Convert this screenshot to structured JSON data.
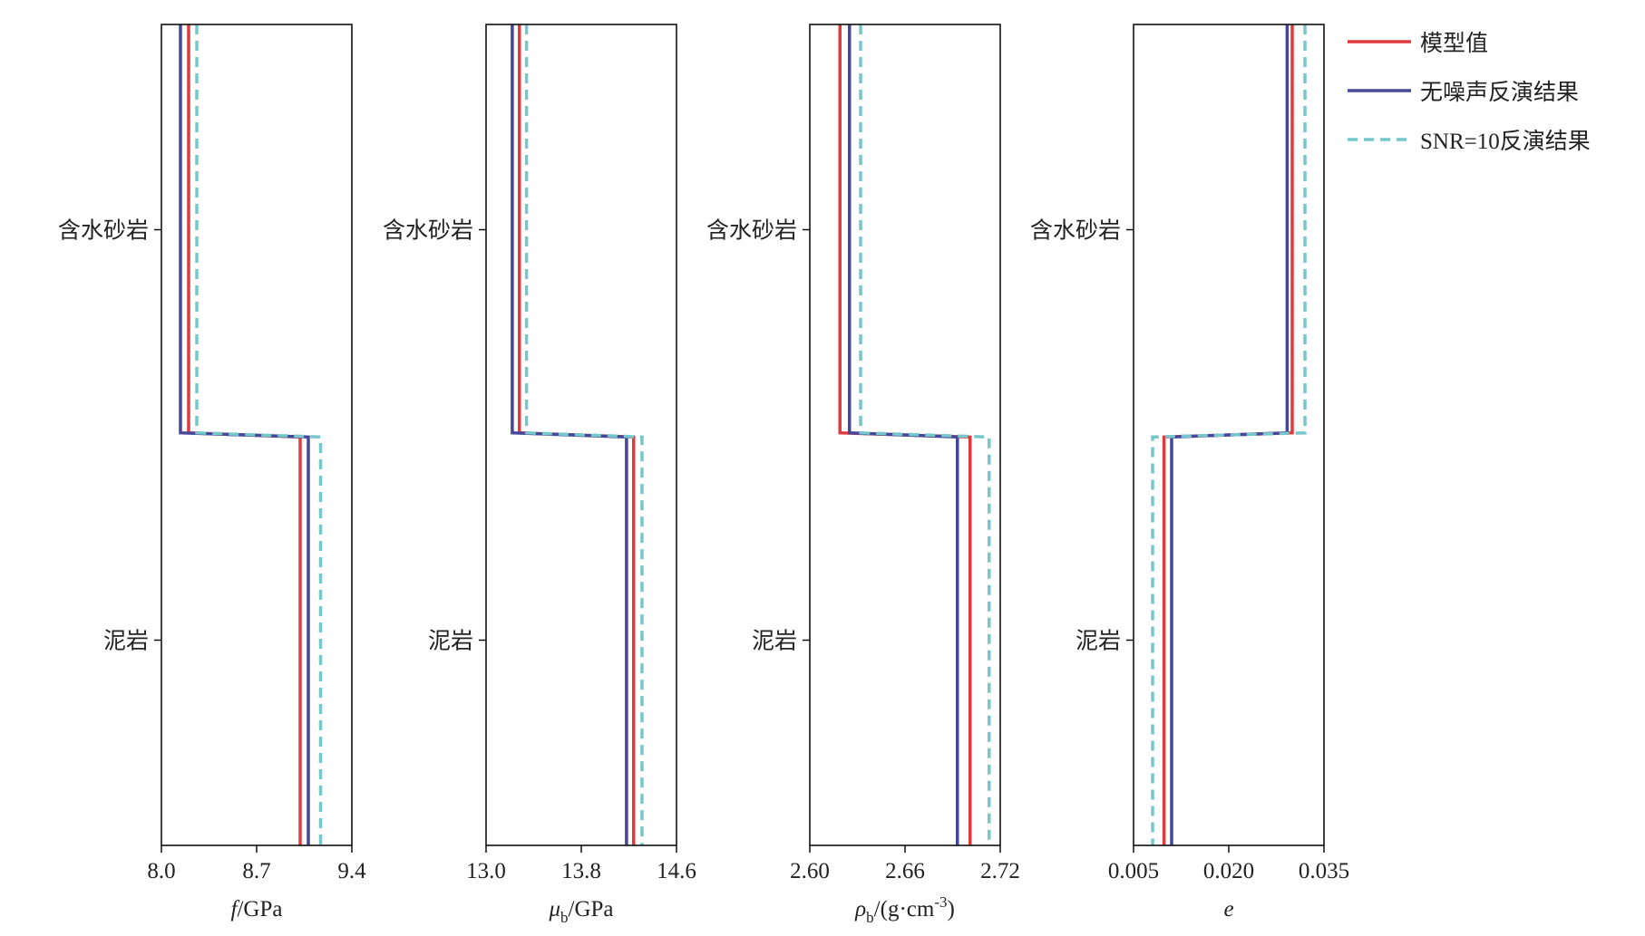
{
  "chart_data": [
    {
      "type": "line",
      "xlim": [
        8.0,
        9.4
      ],
      "xticks": [
        {
          "value": 8.0,
          "label": "8.0"
        },
        8.7,
        9.4
      ],
      "ylim": [
        0,
        2
      ],
      "yticks": [
        {
          "value": 0.5,
          "label": "含水砂岩"
        },
        {
          "value": 1.5,
          "label": "泥岩"
        }
      ],
      "xlabel": [
        {
          "text": "f",
          "style": "italic"
        },
        {
          "text": "/GPa",
          "style": "normal"
        }
      ],
      "series": [
        {
          "name": "模型值",
          "color": "#e03a3e",
          "dashed": false,
          "values": [
            8.2,
            8.2,
            9.02,
            9.02
          ],
          "depth": [
            0,
            0.995,
            1.005,
            2
          ]
        },
        {
          "name": "无噪声反演结果",
          "color": "#46479a",
          "dashed": false,
          "values": [
            8.14,
            8.14,
            9.08,
            9.08
          ],
          "depth": [
            0,
            0.995,
            1.005,
            2
          ]
        },
        {
          "name": "SNR=10反演结果",
          "color": "#76c7cb",
          "dashed": true,
          "values": [
            8.26,
            8.26,
            9.17,
            9.17
          ],
          "depth": [
            0,
            0.995,
            1.005,
            2
          ]
        }
      ]
    },
    {
      "type": "line",
      "xlim": [
        13.0,
        14.6
      ],
      "xticks": [
        {
          "value": 13.0,
          "label": "13.0"
        },
        13.8,
        14.6
      ],
      "ylim": [
        0,
        2
      ],
      "yticks": [
        {
          "value": 0.5,
          "label": "含水砂岩"
        },
        {
          "value": 1.5,
          "label": "泥岩"
        }
      ],
      "xlabel": [
        {
          "text": "μ",
          "style": "italic"
        },
        {
          "text": "b",
          "style": "sub"
        },
        {
          "text": "/GPa",
          "style": "normal"
        }
      ],
      "series": [
        {
          "color": "#e03a3e",
          "dashed": false,
          "values": [
            13.28,
            13.28,
            14.24,
            14.24
          ],
          "depth": [
            0,
            0.995,
            1.005,
            2
          ]
        },
        {
          "color": "#46479a",
          "dashed": false,
          "values": [
            13.22,
            13.22,
            14.18,
            14.18
          ],
          "depth": [
            0,
            0.995,
            1.005,
            2
          ]
        },
        {
          "color": "#76c7cb",
          "dashed": true,
          "values": [
            13.34,
            13.34,
            14.31,
            14.31
          ],
          "depth": [
            0,
            0.995,
            1.005,
            2
          ]
        }
      ]
    },
    {
      "type": "line",
      "xlim": [
        2.6,
        2.72
      ],
      "xticks": [
        {
          "value": 2.6,
          "label": "2.60"
        },
        2.66,
        2.72
      ],
      "ylim": [
        0,
        2
      ],
      "yticks": [
        {
          "value": 0.5,
          "label": "含水砂岩"
        },
        {
          "value": 1.5,
          "label": "泥岩"
        }
      ],
      "xlabel": [
        {
          "text": "ρ",
          "style": "italic"
        },
        {
          "text": "b",
          "style": "sub"
        },
        {
          "text": "/(g·cm",
          "style": "normal"
        },
        {
          "text": "-3",
          "style": "sup"
        },
        {
          "text": ")",
          "style": "normal"
        }
      ],
      "series": [
        {
          "color": "#e03a3e",
          "dashed": false,
          "values": [
            2.619,
            2.619,
            2.701,
            2.701
          ],
          "depth": [
            0,
            0.995,
            1.005,
            2
          ]
        },
        {
          "color": "#46479a",
          "dashed": false,
          "values": [
            2.625,
            2.625,
            2.693,
            2.693
          ],
          "depth": [
            0,
            0.995,
            1.005,
            2
          ]
        },
        {
          "color": "#76c7cb",
          "dashed": true,
          "values": [
            2.632,
            2.632,
            2.713,
            2.713
          ],
          "depth": [
            0,
            0.995,
            1.005,
            2
          ]
        }
      ]
    },
    {
      "type": "line",
      "xlim": [
        0.005,
        0.035
      ],
      "xticks": [
        0.005,
        {
          "value": 0.02,
          "label": "0.020"
        },
        0.035
      ],
      "ylim": [
        0,
        2
      ],
      "yticks": [
        {
          "value": 0.5,
          "label": "含水砂岩"
        },
        {
          "value": 1.5,
          "label": "泥岩"
        }
      ],
      "xlabel": [
        {
          "text": "e",
          "style": "italic"
        }
      ],
      "series": [
        {
          "color": "#e03a3e",
          "dashed": false,
          "values": [
            0.03,
            0.03,
            0.0098,
            0.0098
          ],
          "depth": [
            0,
            0.995,
            1.005,
            2
          ]
        },
        {
          "color": "#46479a",
          "dashed": false,
          "values": [
            0.0292,
            0.0292,
            0.011,
            0.011
          ],
          "depth": [
            0,
            0.995,
            1.005,
            2
          ]
        },
        {
          "color": "#76c7cb",
          "dashed": true,
          "values": [
            0.032,
            0.032,
            0.008,
            0.008
          ],
          "depth": [
            0,
            0.995,
            1.005,
            2
          ]
        }
      ]
    }
  ]
}
